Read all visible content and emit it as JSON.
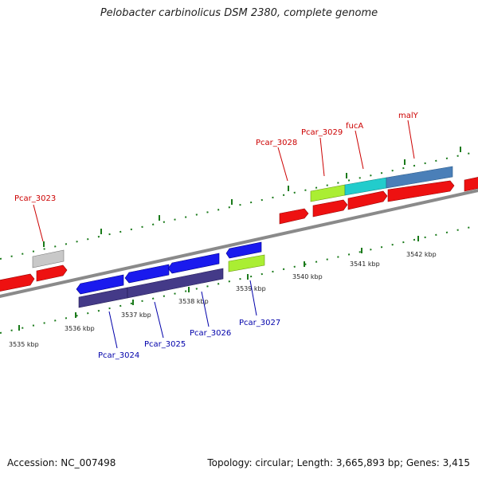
{
  "title": "Pelobacter carbinolicus DSM 2380, complete genome",
  "footer": {
    "accession": "Accession: NC_007498",
    "topology": "Topology: circular; Length: 3,665,893 bp; Genes: 3,415"
  },
  "colors": {
    "forward_label": "#cc0000",
    "reverse_label": "#0000aa",
    "tick": "#1a7a1a",
    "backbone": "#8a8a8a"
  },
  "scale_labels": [
    "3535 kbp",
    "3536 kbp",
    "3537 kbp",
    "3538 kbp",
    "3539 kbp",
    "3540 kbp",
    "3541 kbp",
    "3542 kbp"
  ],
  "gene_labels": {
    "forward": [
      "Pcar_3023",
      "Pcar_3028",
      "Pcar_3029",
      "fucA",
      "malY"
    ],
    "reverse": [
      "Pcar_3024",
      "Pcar_3025",
      "Pcar_3026",
      "Pcar_3027"
    ]
  }
}
